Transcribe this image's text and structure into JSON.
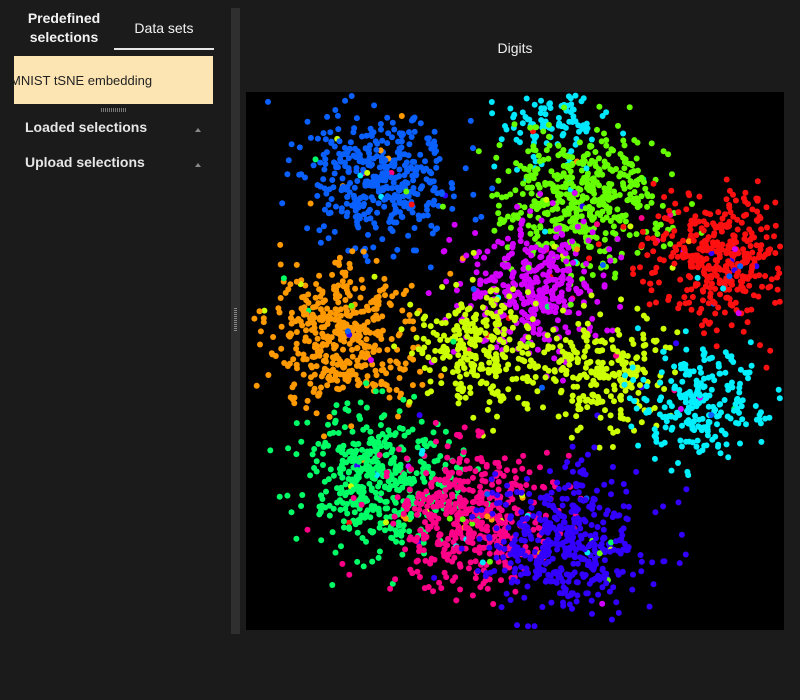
{
  "tabs": {
    "predefined_label": "Predefined selections",
    "datasets_label": "Data sets"
  },
  "dataset": {
    "name": "MNIST tSNE embedding"
  },
  "sections": {
    "loaded_label": "Loaded selections",
    "upload_label": "Upload selections"
  },
  "plot": {
    "title": "Digits"
  },
  "chart_data": {
    "type": "scatter",
    "title": "Digits",
    "xlabel": "",
    "ylabel": "",
    "background": "#000000",
    "grid": false,
    "series": [
      {
        "color": "#0a60ff",
        "x": 0.25,
        "y": 0.16,
        "count": 420
      },
      {
        "color": "#00e8ff",
        "x": 0.56,
        "y": 0.05,
        "count": 120
      },
      {
        "color": "#66ff00",
        "x": 0.62,
        "y": 0.2,
        "count": 480
      },
      {
        "color": "#ff1010",
        "x": 0.88,
        "y": 0.31,
        "count": 420
      },
      {
        "color": "#d400ff",
        "x": 0.53,
        "y": 0.36,
        "count": 380
      },
      {
        "color": "#ff9900",
        "x": 0.18,
        "y": 0.45,
        "count": 460
      },
      {
        "color": "#ccff00",
        "x": 0.44,
        "y": 0.48,
        "count": 300
      },
      {
        "color": "#ccff00",
        "x": 0.67,
        "y": 0.52,
        "count": 230
      },
      {
        "color": "#00f0ff",
        "x": 0.84,
        "y": 0.58,
        "count": 240
      },
      {
        "color": "#00ff66",
        "x": 0.24,
        "y": 0.72,
        "count": 460
      },
      {
        "color": "#ff0088",
        "x": 0.41,
        "y": 0.79,
        "count": 480
      },
      {
        "color": "#3300ff",
        "x": 0.6,
        "y": 0.84,
        "count": 460
      }
    ]
  }
}
